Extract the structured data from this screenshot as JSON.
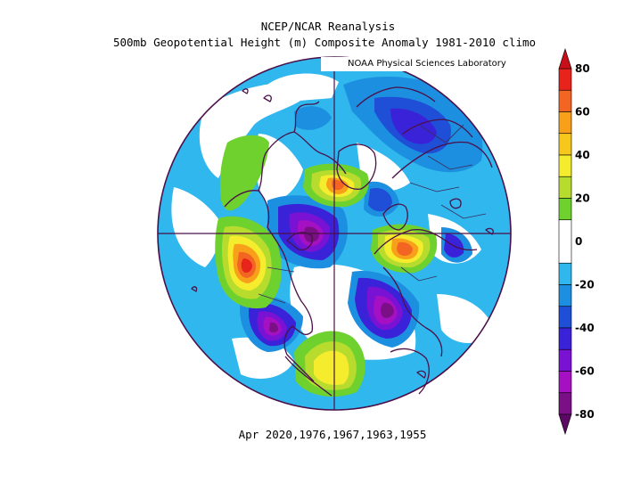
{
  "header": {
    "line1": "NCEP/NCAR Reanalysis",
    "line2": "500mb Geopotential Height (m) Composite Anomaly 1981-2010 climo"
  },
  "credit": "NOAA Physical Sciences Laboratory",
  "footer": "Apr 2020,1976,1967,1963,1955",
  "colorbar": {
    "ticks": [
      "80",
      "60",
      "40",
      "20",
      "0",
      "-20",
      "-40",
      "-60",
      "-80"
    ],
    "bins": [
      {
        "from": 70,
        "to": 80,
        "color": "#e8231b"
      },
      {
        "from": 60,
        "to": 70,
        "color": "#f26522"
      },
      {
        "from": 50,
        "to": 60,
        "color": "#f9a01b"
      },
      {
        "from": 40,
        "to": 50,
        "color": "#f7c81c"
      },
      {
        "from": 30,
        "to": 40,
        "color": "#f4ec2c"
      },
      {
        "from": 20,
        "to": 30,
        "color": "#b7dc2e"
      },
      {
        "from": 10,
        "to": 20,
        "color": "#6fd12d"
      },
      {
        "from": -10,
        "to": 10,
        "color": "#ffffff"
      },
      {
        "from": -20,
        "to": -10,
        "color": "#2fb7ee"
      },
      {
        "from": -30,
        "to": -20,
        "color": "#1d8fe0"
      },
      {
        "from": -40,
        "to": -30,
        "color": "#1e4fd6"
      },
      {
        "from": -50,
        "to": -40,
        "color": "#3a22d8"
      },
      {
        "from": -60,
        "to": -50,
        "color": "#7a12d4"
      },
      {
        "from": -70,
        "to": -60,
        "color": "#a511c2"
      },
      {
        "from": -80,
        "to": -70,
        "color": "#7a0f86"
      }
    ],
    "over_color": "#c8101a",
    "under_color": "#5a0a62"
  },
  "map": {
    "projection": "north polar stereographic",
    "background_color": "#2fb7ee",
    "border_color": "#4b1049",
    "coastline_color": "#4b1049",
    "country_color": "#3a2a5a"
  }
}
